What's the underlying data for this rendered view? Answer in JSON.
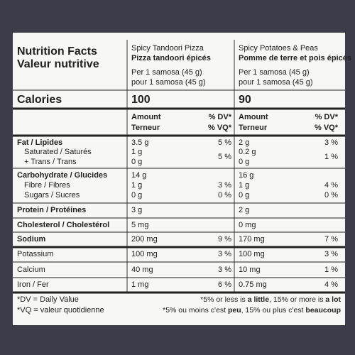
{
  "header": {
    "title_en": "Nutrition Facts",
    "title_fr": "Valeur nutritive"
  },
  "products": [
    {
      "name_en": "Spicy Tandoori Pizza",
      "name_fr": "Pizza tandoori épicés",
      "serving_en": "Per 1 samosa (45 g)",
      "serving_fr": "pour 1 samosa (45 g)",
      "calories": "100"
    },
    {
      "name_en": "Spicy Potatoes & Peas",
      "name_fr": "Pomme de terre et pois épicés",
      "serving_en": "Per 1 samosa (45 g)",
      "serving_fr": "pour 1 samosa (45 g)",
      "calories": "90"
    }
  ],
  "calories_label": "Calories",
  "column_heads": {
    "amount_en": "Amount",
    "amount_fr": "Terneur",
    "dv_en": "% DV*",
    "dv_fr": "% VQ*"
  },
  "rows": [
    {
      "label": "Fat / Lipides",
      "amounts": [
        "3.5 g",
        "2 g"
      ],
      "dv": [
        "5 %",
        "3 %"
      ]
    },
    {
      "label": "Saturated / Saturés",
      "amounts": [
        "1 g",
        "0.2 g"
      ]
    },
    {
      "label": "+ Trans / Trans",
      "amounts": [
        "0 g",
        "0 g"
      ]
    },
    {
      "label": "Carbohydrate / Glucides",
      "amounts": [
        "14 g",
        "16 g"
      ]
    },
    {
      "label": "Fibre / Fibres",
      "amounts": [
        "1 g",
        "1 g"
      ],
      "dv": [
        "3 %",
        "4 %"
      ]
    },
    {
      "label": "Sugars / Sucres",
      "amounts": [
        "0 g",
        "0 g"
      ],
      "dv": [
        "0 %",
        "0 %"
      ]
    },
    {
      "label": "Protein / Protéines",
      "amounts": [
        "3 g",
        "2 g"
      ]
    },
    {
      "label": "Cholesterol / Cholestérol",
      "amounts": [
        "5 mg",
        "0 mg"
      ]
    },
    {
      "label": "Sodium",
      "amounts": [
        "200 mg",
        "170 mg"
      ],
      "dv": [
        "9 %",
        "7 %"
      ]
    },
    {
      "label": "Potassium",
      "amounts": [
        "100 mg",
        "100 mg"
      ],
      "dv": [
        "3 %",
        "3 %"
      ]
    },
    {
      "label": "Calcium",
      "amounts": [
        "40 mg",
        "10 mg"
      ],
      "dv": [
        "3 %",
        "1 %"
      ]
    },
    {
      "label": "Iron / Fer",
      "amounts": [
        "1 mg",
        "0.75 mg"
      ],
      "dv": [
        "6 %",
        "4 %"
      ]
    }
  ],
  "saturated_trans_dv": [
    "5 %",
    "1 %"
  ],
  "footnotes": {
    "dv_en": "*DV = Daily Value",
    "dv_fr": "*VQ = valeur quotidienne",
    "scale_en": [
      "*5% or less is ",
      "a little",
      ", 15% or more is ",
      "a lot"
    ],
    "scale_fr": [
      "*5% ou moins c'est ",
      "peu",
      ", 15% ou plus c'est ",
      "beaucoup"
    ]
  }
}
